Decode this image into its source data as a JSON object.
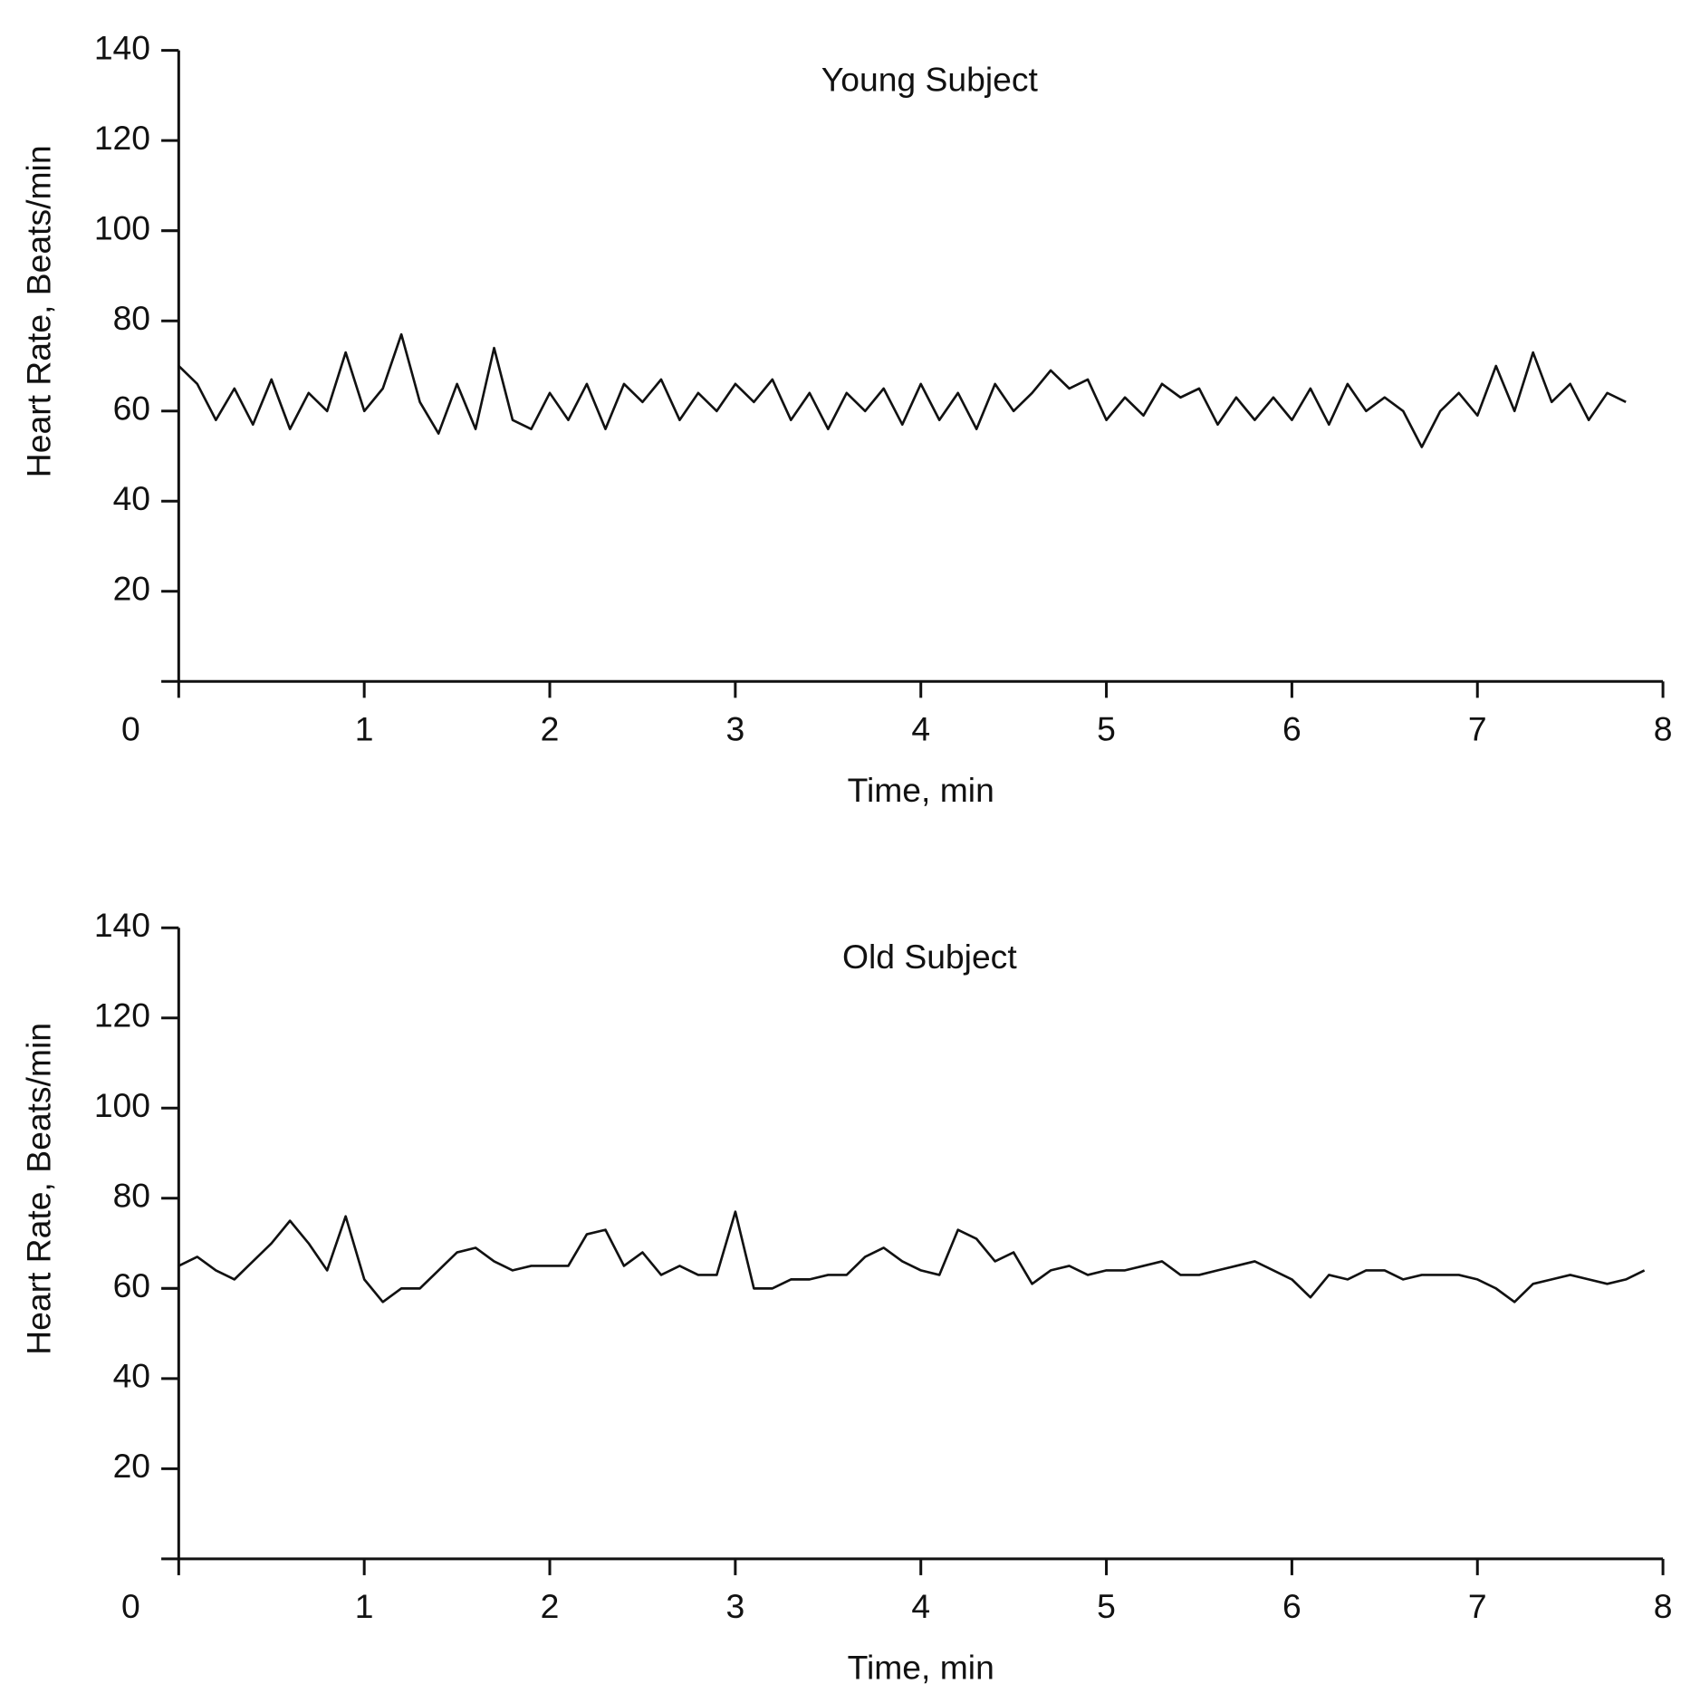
{
  "chart_data": [
    {
      "type": "line",
      "title": "Young Subject",
      "x_label": "Time, min",
      "y_label": "Heart Rate, Beats/min",
      "xlim": [
        0,
        8
      ],
      "ylim": [
        0,
        140
      ],
      "xticks": [
        0,
        1,
        2,
        3,
        4,
        5,
        6,
        7,
        8
      ],
      "yticks": [
        20,
        40,
        60,
        80,
        100,
        120,
        140
      ],
      "color": "#111111",
      "x": [
        0,
        0.1,
        0.2,
        0.3,
        0.4,
        0.5,
        0.6,
        0.7,
        0.8,
        0.9,
        1,
        1.1,
        1.2,
        1.3,
        1.4,
        1.5,
        1.6,
        1.7,
        1.8,
        1.9,
        2,
        2.1,
        2.2,
        2.3,
        2.4,
        2.5,
        2.6,
        2.7,
        2.8,
        2.9,
        3,
        3.1,
        3.2,
        3.3,
        3.4,
        3.5,
        3.6,
        3.7,
        3.8,
        3.9,
        4,
        4.1,
        4.2,
        4.3,
        4.4,
        4.5,
        4.6,
        4.7,
        4.8,
        4.9,
        5,
        5.1,
        5.2,
        5.3,
        5.4,
        5.5,
        5.6,
        5.7,
        5.8,
        5.9,
        6,
        6.1,
        6.2,
        6.3,
        6.4,
        6.5,
        6.6,
        6.7,
        6.8,
        6.9,
        7,
        7.1,
        7.2,
        7.3,
        7.4,
        7.5,
        7.6,
        7.7,
        7.8
      ],
      "values": [
        70,
        66,
        58,
        65,
        57,
        67,
        56,
        64,
        60,
        73,
        60,
        65,
        77,
        62,
        55,
        66,
        56,
        74,
        58,
        56,
        64,
        58,
        66,
        56,
        66,
        62,
        67,
        58,
        64,
        60,
        66,
        62,
        67,
        58,
        64,
        56,
        64,
        60,
        65,
        57,
        66,
        58,
        64,
        56,
        66,
        60,
        64,
        69,
        65,
        67,
        58,
        63,
        59,
        66,
        63,
        65,
        57,
        63,
        58,
        63,
        58,
        65,
        57,
        66,
        60,
        63,
        60,
        52,
        60,
        64,
        59,
        70,
        60,
        73,
        62,
        66,
        58,
        64,
        62
      ]
    },
    {
      "type": "line",
      "title": "Old Subject",
      "x_label": "Time, min",
      "y_label": "Heart Rate, Beats/min",
      "xlim": [
        0,
        8
      ],
      "ylim": [
        0,
        140
      ],
      "xticks": [
        0,
        1,
        2,
        3,
        4,
        5,
        6,
        7,
        8
      ],
      "yticks": [
        20,
        40,
        60,
        80,
        100,
        120,
        140
      ],
      "color": "#111111",
      "x": [
        0,
        0.1,
        0.2,
        0.3,
        0.4,
        0.5,
        0.6,
        0.7,
        0.8,
        0.9,
        1,
        1.1,
        1.2,
        1.3,
        1.4,
        1.5,
        1.6,
        1.7,
        1.8,
        1.9,
        2,
        2.1,
        2.2,
        2.3,
        2.4,
        2.5,
        2.6,
        2.7,
        2.8,
        2.9,
        3,
        3.1,
        3.2,
        3.3,
        3.4,
        3.5,
        3.6,
        3.7,
        3.8,
        3.9,
        4,
        4.1,
        4.2,
        4.3,
        4.4,
        4.5,
        4.6,
        4.7,
        4.8,
        4.9,
        5,
        5.1,
        5.2,
        5.3,
        5.4,
        5.5,
        5.6,
        5.7,
        5.8,
        5.9,
        6,
        6.1,
        6.2,
        6.3,
        6.4,
        6.5,
        6.6,
        6.7,
        6.8,
        6.9,
        7,
        7.1,
        7.2,
        7.3,
        7.4,
        7.5,
        7.6,
        7.7,
        7.8,
        7.9
      ],
      "values": [
        65,
        67,
        64,
        62,
        66,
        70,
        75,
        70,
        64,
        76,
        62,
        57,
        60,
        60,
        64,
        68,
        69,
        66,
        64,
        65,
        65,
        65,
        72,
        73,
        65,
        68,
        63,
        65,
        63,
        63,
        77,
        60,
        60,
        62,
        62,
        63,
        63,
        67,
        69,
        66,
        64,
        63,
        73,
        71,
        66,
        68,
        61,
        64,
        65,
        63,
        64,
        64,
        65,
        66,
        63,
        63,
        64,
        65,
        66,
        64,
        62,
        58,
        63,
        62,
        64,
        64,
        62,
        63,
        63,
        63,
        62,
        60,
        57,
        61,
        62,
        63,
        62,
        61,
        62,
        64
      ]
    }
  ]
}
